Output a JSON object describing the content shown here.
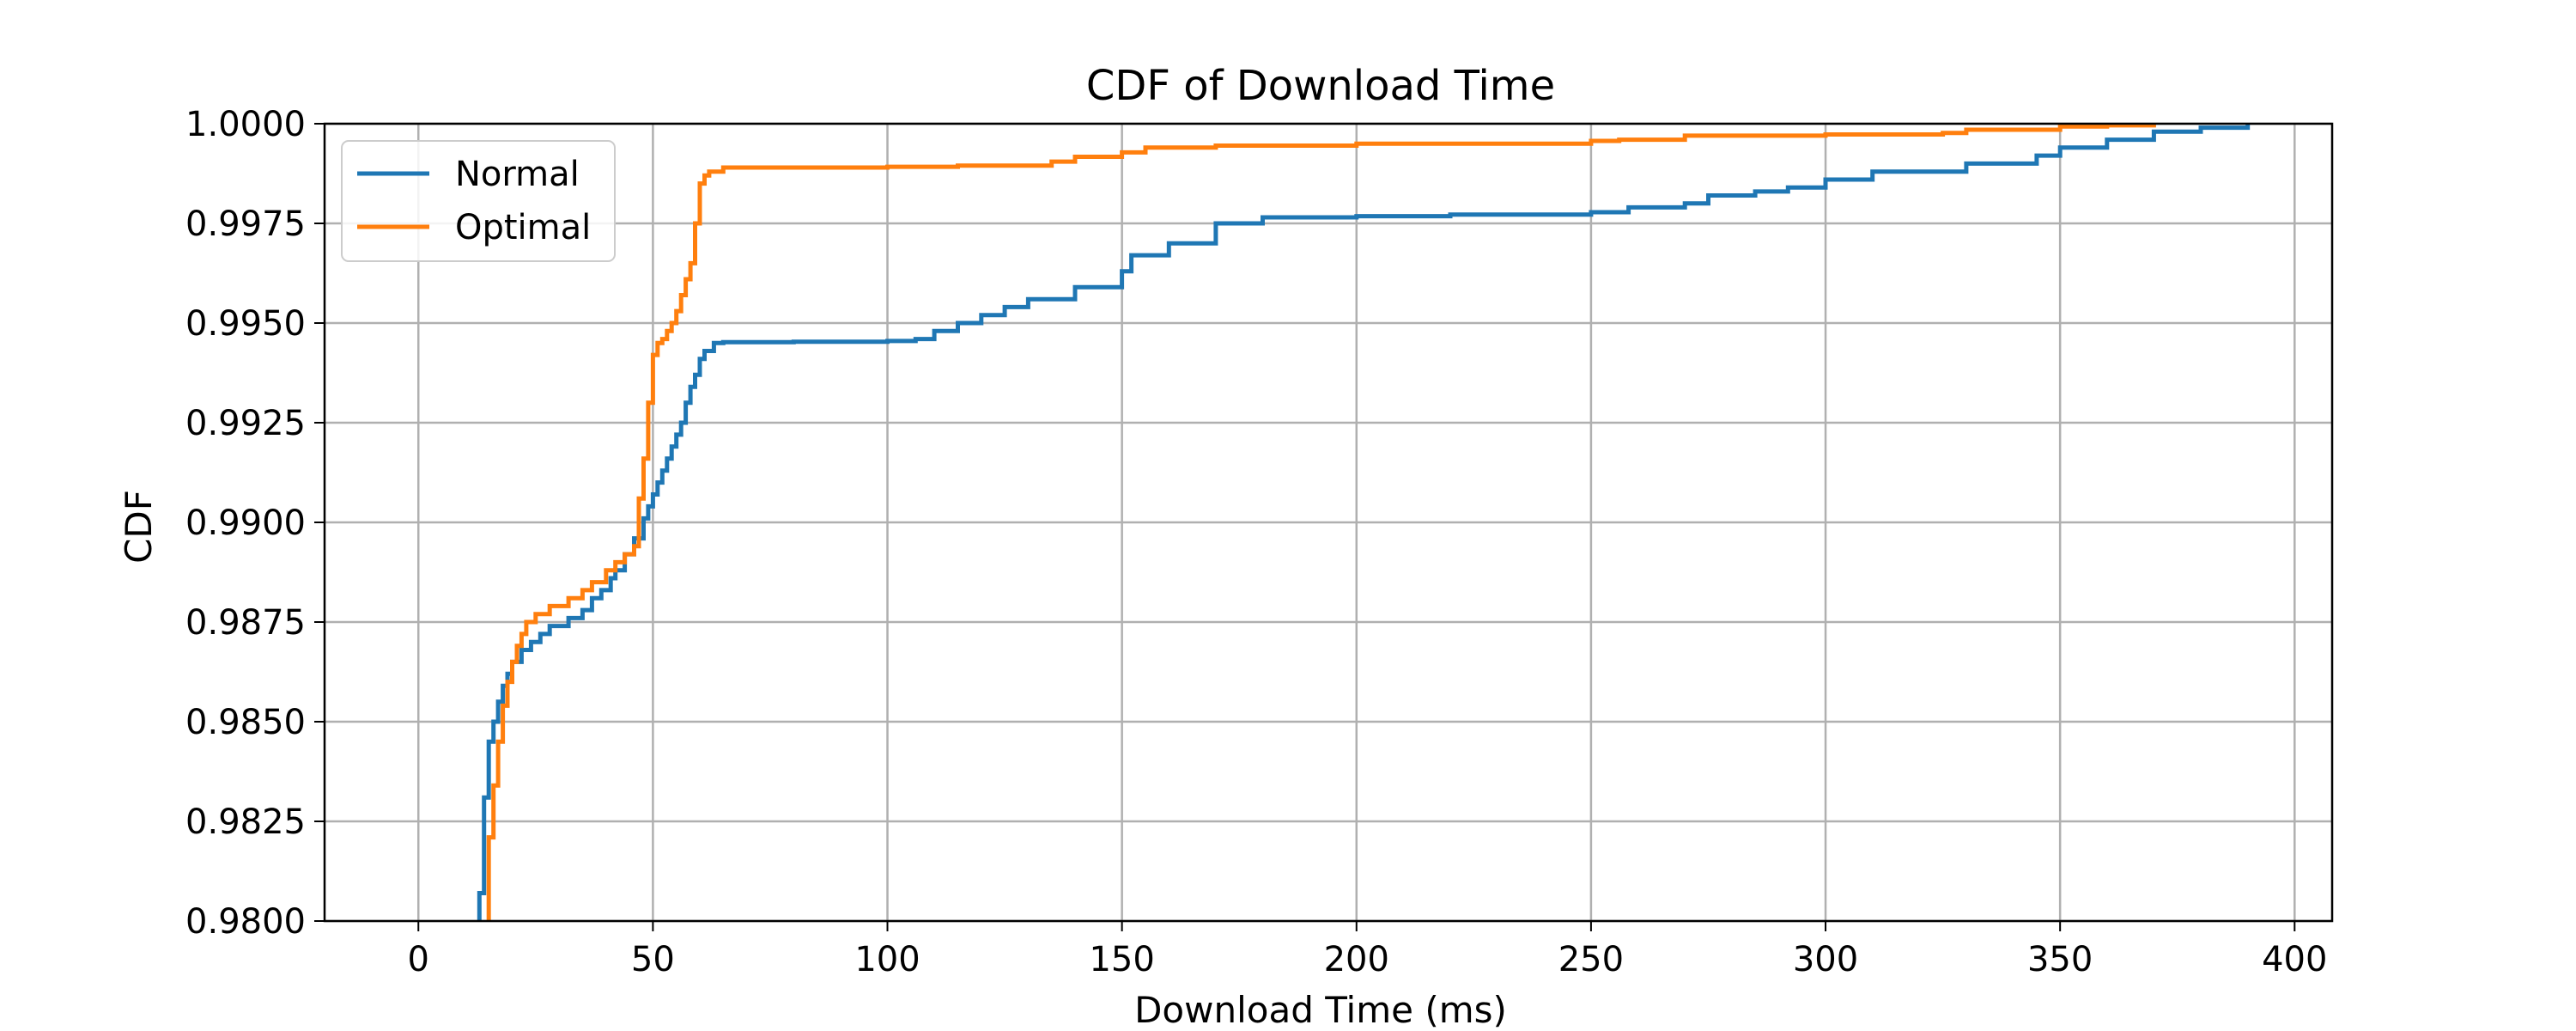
{
  "chart_data": {
    "type": "line",
    "title": "CDF of Download Time",
    "xlabel": "Download Time (ms)",
    "ylabel": "CDF",
    "xlim": [
      -20,
      408
    ],
    "ylim": [
      0.98,
      1.0
    ],
    "xticks": [
      0,
      50,
      100,
      150,
      200,
      250,
      300,
      350,
      400
    ],
    "xtick_labels": [
      "0",
      "50",
      "100",
      "150",
      "200",
      "250",
      "300",
      "350",
      "400"
    ],
    "yticks": [
      0.98,
      0.9825,
      0.985,
      0.9875,
      0.99,
      0.9925,
      0.995,
      0.9975,
      1.0
    ],
    "ytick_labels": [
      "0.9800",
      "0.9825",
      "0.9850",
      "0.9875",
      "0.9900",
      "0.9925",
      "0.9950",
      "0.9975",
      "1.0000"
    ],
    "grid": true,
    "legend_position": "top-left",
    "series": [
      {
        "name": "Normal",
        "color": "#1f77b4",
        "x": [
          13,
          13,
          14,
          14,
          15,
          15,
          16,
          17,
          18,
          19,
          20,
          22,
          24,
          26,
          28,
          32,
          35,
          37,
          39,
          41,
          42,
          44,
          46,
          48,
          49,
          50,
          51,
          52,
          53,
          54,
          55,
          56,
          57,
          58,
          59,
          60,
          61,
          63,
          65,
          80,
          100,
          106,
          110,
          115,
          120,
          125,
          130,
          140,
          150,
          152,
          160,
          170,
          180,
          200,
          220,
          250,
          258,
          270,
          275,
          285,
          292,
          300,
          310,
          330,
          345,
          350,
          360,
          370,
          380,
          390
        ],
        "y": [
          0.98,
          0.9807,
          0.9819,
          0.9831,
          0.9838,
          0.9845,
          0.985,
          0.9855,
          0.9859,
          0.9862,
          0.9865,
          0.9868,
          0.987,
          0.9872,
          0.9874,
          0.9876,
          0.9878,
          0.9881,
          0.9883,
          0.9886,
          0.9888,
          0.9892,
          0.9896,
          0.9901,
          0.9904,
          0.9907,
          0.991,
          0.9913,
          0.9916,
          0.9919,
          0.9922,
          0.9925,
          0.993,
          0.9934,
          0.9937,
          0.9941,
          0.9943,
          0.9945,
          0.99452,
          0.99453,
          0.99455,
          0.9946,
          0.9948,
          0.995,
          0.9952,
          0.9954,
          0.9956,
          0.9959,
          0.9963,
          0.9967,
          0.997,
          0.9975,
          0.99765,
          0.99768,
          0.99772,
          0.99778,
          0.9979,
          0.998,
          0.9982,
          0.9983,
          0.9984,
          0.9986,
          0.9988,
          0.999,
          0.9992,
          0.9994,
          0.9996,
          0.9998,
          0.9999,
          1.0
        ]
      },
      {
        "name": "Optimal",
        "color": "#ff7f0e",
        "x": [
          15,
          15,
          16,
          17,
          18,
          19,
          20,
          21,
          22,
          23,
          25,
          28,
          32,
          35,
          37,
          40,
          42,
          44,
          46,
          47,
          48,
          49,
          50,
          51,
          52,
          53,
          54,
          55,
          56,
          57,
          58,
          59,
          60,
          61,
          62,
          65,
          100,
          115,
          135,
          140,
          150,
          155,
          170,
          200,
          250,
          256,
          270,
          300,
          325,
          330,
          350,
          360,
          370
        ],
        "y": [
          0.98,
          0.9821,
          0.9834,
          0.9845,
          0.9854,
          0.986,
          0.9865,
          0.9869,
          0.9872,
          0.9875,
          0.9877,
          0.9879,
          0.9881,
          0.9883,
          0.9885,
          0.9888,
          0.989,
          0.9892,
          0.9894,
          0.9906,
          0.9916,
          0.993,
          0.9942,
          0.9945,
          0.9946,
          0.9948,
          0.995,
          0.9953,
          0.9957,
          0.9961,
          0.9965,
          0.9975,
          0.9985,
          0.9987,
          0.9988,
          0.9989,
          0.99892,
          0.99895,
          0.99905,
          0.99917,
          0.99928,
          0.9994,
          0.99945,
          0.9995,
          0.99957,
          0.9996,
          0.9997,
          0.99973,
          0.99977,
          0.99985,
          0.99993,
          0.99996,
          1.0
        ]
      }
    ]
  }
}
